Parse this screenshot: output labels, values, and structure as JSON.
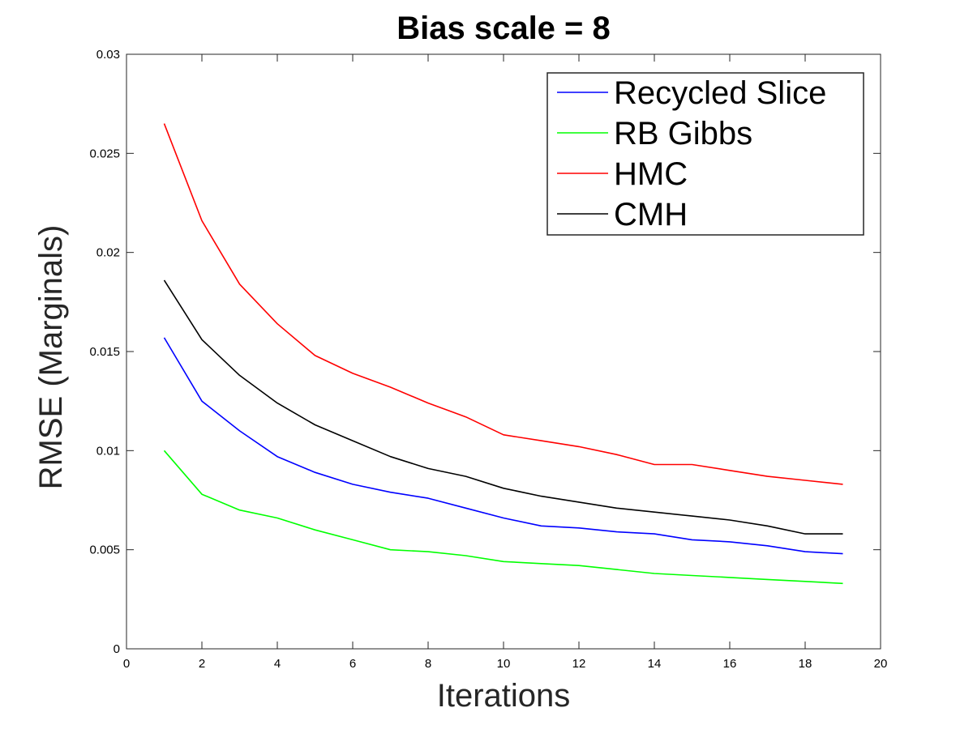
{
  "chart_data": {
    "type": "line",
    "title": "Bias scale = 8",
    "xlabel": "Iterations",
    "ylabel": "RMSE (Marginals)",
    "xlim": [
      0,
      20
    ],
    "ylim": [
      0,
      0.03
    ],
    "xticks": [
      0,
      2,
      4,
      6,
      8,
      10,
      12,
      14,
      16,
      18,
      20
    ],
    "xtick_labels": [
      "0",
      "2",
      "4",
      "6",
      "8",
      "10",
      "12",
      "14",
      "16",
      "18",
      "20"
    ],
    "yticks": [
      0,
      0.005,
      0.01,
      0.015,
      0.02,
      0.025,
      0.03
    ],
    "ytick_labels": [
      "0",
      "0.005",
      "0.01",
      "0.015",
      "0.02",
      "0.025",
      "0.03"
    ],
    "grid": false,
    "legend_position": "top-right",
    "x": [
      1,
      2,
      3,
      4,
      5,
      6,
      7,
      8,
      9,
      10,
      11,
      12,
      13,
      14,
      15,
      16,
      17,
      18,
      19
    ],
    "series": [
      {
        "name": "Recycled Slice",
        "color": "#0000ff",
        "values": [
          0.0157,
          0.0125,
          0.011,
          0.0097,
          0.0089,
          0.0083,
          0.0079,
          0.0076,
          0.0071,
          0.0066,
          0.0062,
          0.0061,
          0.0059,
          0.0058,
          0.0055,
          0.0054,
          0.0052,
          0.0049,
          0.0048
        ]
      },
      {
        "name": "RB Gibbs",
        "color": "#00ff00",
        "values": [
          0.01,
          0.0078,
          0.007,
          0.0066,
          0.006,
          0.0055,
          0.005,
          0.0049,
          0.0047,
          0.0044,
          0.0043,
          0.0042,
          0.004,
          0.0038,
          0.0037,
          0.0036,
          0.0035,
          0.0034,
          0.0033
        ]
      },
      {
        "name": "HMC",
        "color": "#ff0000",
        "values": [
          0.0265,
          0.0216,
          0.0184,
          0.0164,
          0.0148,
          0.0139,
          0.0132,
          0.0124,
          0.0117,
          0.0108,
          0.0105,
          0.0102,
          0.0098,
          0.0093,
          0.0093,
          0.009,
          0.0087,
          0.0085,
          0.0083
        ]
      },
      {
        "name": "CMH",
        "color": "#000000",
        "values": [
          0.0186,
          0.0156,
          0.0138,
          0.0124,
          0.0113,
          0.0105,
          0.0097,
          0.0091,
          0.0087,
          0.0081,
          0.0077,
          0.0074,
          0.0071,
          0.0069,
          0.0067,
          0.0065,
          0.0062,
          0.0058,
          0.0058
        ]
      }
    ]
  }
}
